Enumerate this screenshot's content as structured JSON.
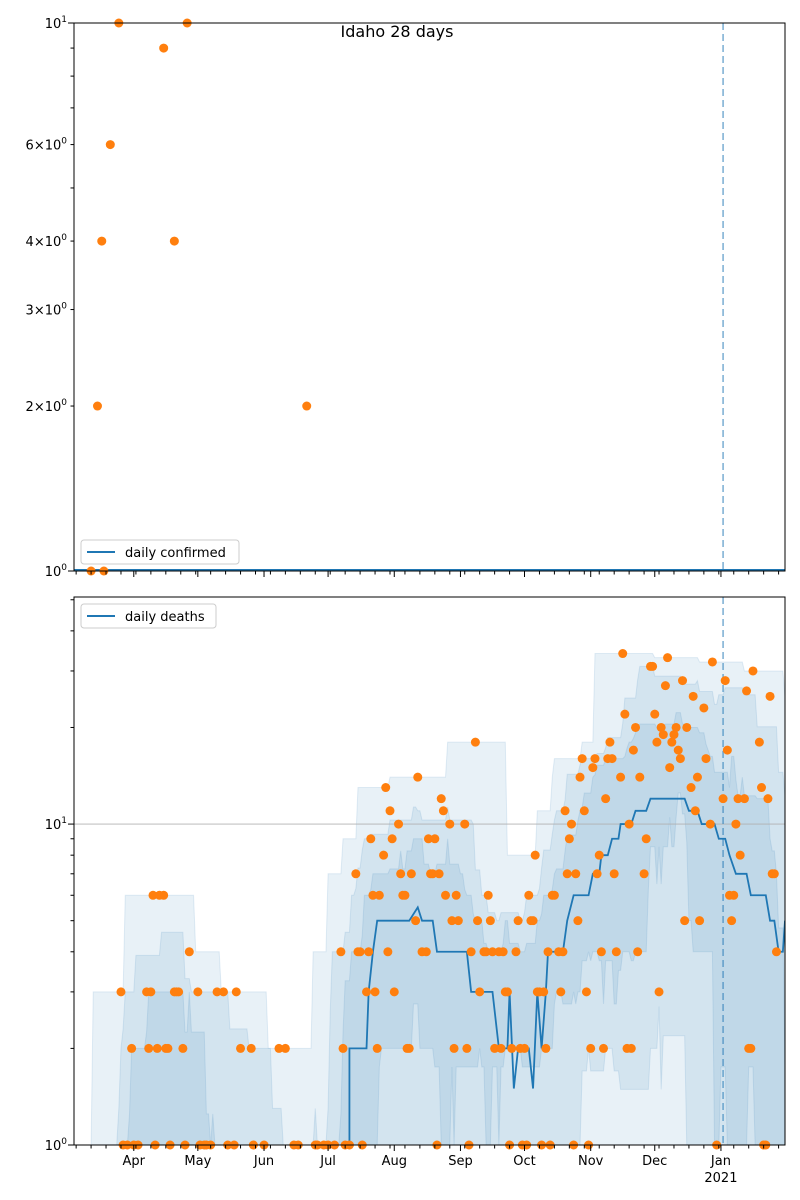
{
  "chart_data": [
    {
      "type": "scatter",
      "title": "Idaho 28 days",
      "x_origin_date": "2020-03-01",
      "x_unit": "days since x_origin_date",
      "yscale": "log",
      "ylim": [
        1,
        10
      ],
      "ytick_labels": [
        {
          "value": 1,
          "base": "10",
          "exp": "0",
          "mult": ""
        },
        {
          "value": 2,
          "base": "10",
          "exp": "0",
          "mult": "2×"
        },
        {
          "value": 3,
          "base": "10",
          "exp": "0",
          "mult": "3×"
        },
        {
          "value": 4,
          "base": "10",
          "exp": "0",
          "mult": "4×"
        },
        {
          "value": 6,
          "base": "10",
          "exp": "0",
          "mult": "6×"
        },
        {
          "value": 10,
          "base": "10",
          "exp": "1",
          "mult": ""
        }
      ],
      "legend": {
        "label": "daily confirmed",
        "placement": "lower-left"
      },
      "line": {
        "name": "daily confirmed",
        "points": [
          [
            3,
            1
          ],
          [
            336,
            1
          ]
        ]
      },
      "points": [
        [
          11,
          1
        ],
        [
          14,
          2
        ],
        [
          16,
          4
        ],
        [
          17,
          1
        ],
        [
          20,
          6
        ],
        [
          24,
          10
        ],
        [
          45,
          9
        ],
        [
          50,
          4
        ],
        [
          56,
          10
        ],
        [
          112,
          2
        ]
      ],
      "vline_day": 307
    },
    {
      "type": "scatter",
      "yscale": "log",
      "ylim": [
        1,
        51
      ],
      "ytick_labels": [
        {
          "value": 1,
          "base": "10",
          "exp": "0"
        },
        {
          "value": 10,
          "base": "10",
          "exp": "1"
        }
      ],
      "hgrid": [
        10
      ],
      "legend": {
        "label": "daily deaths",
        "placement": "upper-left"
      },
      "xlim_days": [
        3,
        336
      ],
      "xtick_labels": [
        {
          "day": 31,
          "label": "Apr"
        },
        {
          "day": 61,
          "label": "May"
        },
        {
          "day": 92,
          "label": "Jun"
        },
        {
          "day": 122,
          "label": "Jul"
        },
        {
          "day": 153,
          "label": "Aug"
        },
        {
          "day": 184,
          "label": "Sep"
        },
        {
          "day": 214,
          "label": "Oct"
        },
        {
          "day": 245,
          "label": "Nov"
        },
        {
          "day": 275,
          "label": "Dec"
        },
        {
          "day": 306,
          "label": "Jan",
          "sub": "2021"
        }
      ],
      "median": [
        [
          3,
          0.5
        ],
        [
          132,
          0.5
        ],
        [
          132,
          2
        ],
        [
          140,
          2
        ],
        [
          141,
          3
        ],
        [
          143,
          4
        ],
        [
          145,
          5
        ],
        [
          160,
          5
        ],
        [
          164,
          5.5
        ],
        [
          166,
          5
        ],
        [
          171,
          5
        ],
        [
          173,
          4
        ],
        [
          187,
          4
        ],
        [
          189,
          3
        ],
        [
          199,
          3
        ],
        [
          202,
          2
        ],
        [
          206,
          2
        ],
        [
          207,
          3
        ],
        [
          209,
          1.5
        ],
        [
          211,
          2
        ],
        [
          216,
          2
        ],
        [
          218,
          1.5
        ],
        [
          220,
          3
        ],
        [
          222,
          2
        ],
        [
          224,
          3
        ],
        [
          225,
          4
        ],
        [
          232,
          4
        ],
        [
          234,
          5
        ],
        [
          237,
          6
        ],
        [
          244,
          6
        ],
        [
          246,
          7
        ],
        [
          249,
          7
        ],
        [
          250,
          8
        ],
        [
          253,
          8
        ],
        [
          255,
          9
        ],
        [
          258,
          9
        ],
        [
          259,
          10
        ],
        [
          264,
          10
        ],
        [
          266,
          11
        ],
        [
          271,
          11
        ],
        [
          273,
          12
        ],
        [
          289,
          12
        ],
        [
          291,
          11
        ],
        [
          295,
          11
        ],
        [
          297,
          10
        ],
        [
          303,
          10
        ],
        [
          305,
          9
        ],
        [
          308,
          9
        ],
        [
          310,
          8
        ],
        [
          313,
          7
        ],
        [
          318,
          7
        ],
        [
          320,
          6
        ],
        [
          327,
          6
        ],
        [
          329,
          5
        ],
        [
          331,
          5
        ],
        [
          333,
          4
        ],
        [
          335,
          4
        ],
        [
          336,
          5
        ]
      ],
      "points": [
        [
          25,
          3
        ],
        [
          26,
          1
        ],
        [
          28,
          1
        ],
        [
          30,
          2
        ],
        [
          31,
          1
        ],
        [
          33,
          1
        ],
        [
          37,
          3
        ],
        [
          38,
          2
        ],
        [
          39,
          3
        ],
        [
          40,
          6
        ],
        [
          41,
          1
        ],
        [
          42,
          2
        ],
        [
          43,
          6
        ],
        [
          45,
          6
        ],
        [
          46,
          2
        ],
        [
          47,
          2
        ],
        [
          48,
          1
        ],
        [
          50,
          3
        ],
        [
          51,
          3
        ],
        [
          52,
          3
        ],
        [
          54,
          2
        ],
        [
          55,
          1
        ],
        [
          57,
          4
        ],
        [
          61,
          3
        ],
        [
          62,
          1
        ],
        [
          64,
          1
        ],
        [
          65,
          1
        ],
        [
          67,
          1
        ],
        [
          70,
          3
        ],
        [
          73,
          3
        ],
        [
          75,
          1
        ],
        [
          78,
          1
        ],
        [
          79,
          3
        ],
        [
          81,
          2
        ],
        [
          86,
          2
        ],
        [
          87,
          1
        ],
        [
          92,
          1
        ],
        [
          99,
          2
        ],
        [
          102,
          2
        ],
        [
          106,
          1
        ],
        [
          108,
          1
        ],
        [
          116,
          1
        ],
        [
          117,
          1
        ],
        [
          120,
          1
        ],
        [
          122,
          1
        ],
        [
          125,
          1
        ],
        [
          128,
          4
        ],
        [
          129,
          2
        ],
        [
          130,
          1
        ],
        [
          132,
          1
        ],
        [
          135,
          7
        ],
        [
          136,
          4
        ],
        [
          137,
          4
        ],
        [
          138,
          1
        ],
        [
          140,
          3
        ],
        [
          141,
          4
        ],
        [
          142,
          9
        ],
        [
          143,
          6
        ],
        [
          144,
          3
        ],
        [
          145,
          2
        ],
        [
          146,
          6
        ],
        [
          148,
          8
        ],
        [
          149,
          13
        ],
        [
          150,
          4
        ],
        [
          151,
          11
        ],
        [
          152,
          9
        ],
        [
          153,
          3
        ],
        [
          155,
          10
        ],
        [
          156,
          7
        ],
        [
          157,
          6
        ],
        [
          158,
          6
        ],
        [
          159,
          2
        ],
        [
          160,
          2
        ],
        [
          161,
          7
        ],
        [
          163,
          5
        ],
        [
          164,
          14
        ],
        [
          166,
          4
        ],
        [
          168,
          4
        ],
        [
          169,
          9
        ],
        [
          170,
          7
        ],
        [
          171,
          7
        ],
        [
          172,
          9
        ],
        [
          173,
          1
        ],
        [
          174,
          7
        ],
        [
          175,
          12
        ],
        [
          176,
          11
        ],
        [
          177,
          6
        ],
        [
          179,
          10
        ],
        [
          180,
          5
        ],
        [
          181,
          2
        ],
        [
          182,
          6
        ],
        [
          183,
          5
        ],
        [
          186,
          10
        ],
        [
          187,
          2
        ],
        [
          188,
          1
        ],
        [
          189,
          4
        ],
        [
          191,
          18
        ],
        [
          192,
          5
        ],
        [
          193,
          3
        ],
        [
          195,
          4
        ],
        [
          196,
          4
        ],
        [
          197,
          6
        ],
        [
          198,
          5
        ],
        [
          199,
          4
        ],
        [
          200,
          2
        ],
        [
          202,
          4
        ],
        [
          203,
          2
        ],
        [
          204,
          4
        ],
        [
          205,
          3
        ],
        [
          206,
          3
        ],
        [
          207,
          1
        ],
        [
          208,
          2
        ],
        [
          210,
          4
        ],
        [
          211,
          5
        ],
        [
          212,
          2
        ],
        [
          213,
          1
        ],
        [
          214,
          2
        ],
        [
          215,
          1
        ],
        [
          216,
          6
        ],
        [
          217,
          5
        ],
        [
          218,
          5
        ],
        [
          219,
          8
        ],
        [
          220,
          3
        ],
        [
          221,
          3
        ],
        [
          222,
          1
        ],
        [
          223,
          3
        ],
        [
          224,
          2
        ],
        [
          225,
          4
        ],
        [
          226,
          1
        ],
        [
          227,
          6
        ],
        [
          228,
          6
        ],
        [
          230,
          4
        ],
        [
          231,
          3
        ],
        [
          232,
          4
        ],
        [
          233,
          11
        ],
        [
          234,
          7
        ],
        [
          235,
          9
        ],
        [
          236,
          10
        ],
        [
          237,
          1
        ],
        [
          238,
          7
        ],
        [
          239,
          5
        ],
        [
          240,
          14
        ],
        [
          241,
          16
        ],
        [
          242,
          11
        ],
        [
          243,
          3
        ],
        [
          244,
          1
        ],
        [
          245,
          2
        ],
        [
          246,
          15
        ],
        [
          247,
          16
        ],
        [
          248,
          7
        ],
        [
          249,
          8
        ],
        [
          250,
          4
        ],
        [
          251,
          2
        ],
        [
          252,
          12
        ],
        [
          253,
          16
        ],
        [
          254,
          18
        ],
        [
          255,
          16
        ],
        [
          256,
          7
        ],
        [
          257,
          4
        ],
        [
          259,
          14
        ],
        [
          260,
          34
        ],
        [
          261,
          22
        ],
        [
          262,
          2
        ],
        [
          263,
          10
        ],
        [
          264,
          2
        ],
        [
          265,
          17
        ],
        [
          266,
          20
        ],
        [
          267,
          4
        ],
        [
          268,
          14
        ],
        [
          270,
          7
        ],
        [
          271,
          9
        ],
        [
          273,
          31
        ],
        [
          274,
          31
        ],
        [
          275,
          22
        ],
        [
          276,
          18
        ],
        [
          277,
          3
        ],
        [
          278,
          20
        ],
        [
          279,
          19
        ],
        [
          280,
          27
        ],
        [
          281,
          33
        ],
        [
          282,
          15
        ],
        [
          283,
          18
        ],
        [
          284,
          19
        ],
        [
          285,
          20
        ],
        [
          286,
          17
        ],
        [
          287,
          16
        ],
        [
          288,
          28
        ],
        [
          289,
          5
        ],
        [
          290,
          20
        ],
        [
          292,
          13
        ],
        [
          293,
          25
        ],
        [
          294,
          11
        ],
        [
          295,
          14
        ],
        [
          296,
          5
        ],
        [
          298,
          23
        ],
        [
          299,
          16
        ],
        [
          301,
          10
        ],
        [
          302,
          32
        ],
        [
          304,
          1
        ],
        [
          307,
          12
        ],
        [
          308,
          28
        ],
        [
          309,
          17
        ],
        [
          310,
          6
        ],
        [
          311,
          5
        ],
        [
          312,
          6
        ],
        [
          313,
          10
        ],
        [
          314,
          12
        ],
        [
          315,
          8
        ],
        [
          317,
          12
        ],
        [
          318,
          26
        ],
        [
          319,
          2
        ],
        [
          320,
          2
        ],
        [
          321,
          30
        ],
        [
          324,
          18
        ],
        [
          325,
          13
        ],
        [
          326,
          1
        ],
        [
          327,
          1
        ],
        [
          328,
          12
        ],
        [
          329,
          25
        ],
        [
          330,
          7
        ],
        [
          331,
          7
        ],
        [
          332,
          4
        ]
      ],
      "vline_day": 307
    }
  ],
  "colors": {
    "line": "#1f77b4",
    "points": "#ff7f0e",
    "band": "#1f77b4",
    "grid": "#b0b0b0"
  }
}
